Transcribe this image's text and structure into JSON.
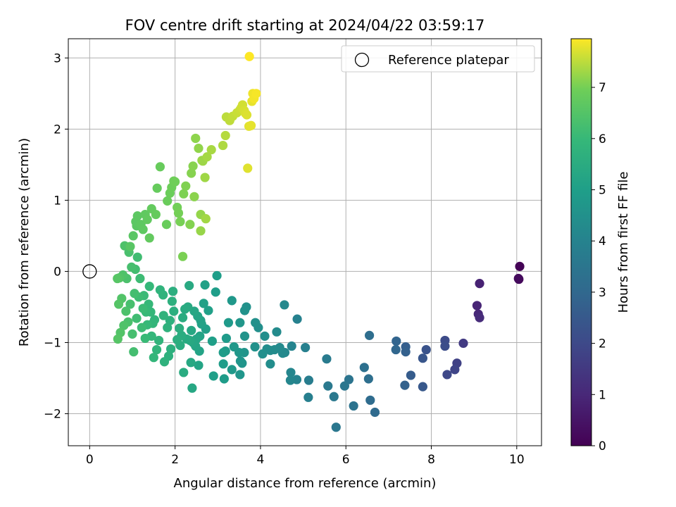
{
  "chart_data": {
    "type": "scatter",
    "title": "FOV centre drift starting at 2024/04/22 03:59:17",
    "xlabel": "Angular distance from reference (arcmin)",
    "ylabel": "Rotation from reference (arcmin)",
    "colorbar_label": "Hours from first FF file",
    "xlim": [
      -0.5,
      10.58
    ],
    "ylim": [
      -2.45,
      3.27
    ],
    "clim": [
      0,
      7.95
    ],
    "xticks": [
      0,
      2,
      4,
      6,
      8,
      10
    ],
    "yticks": [
      -2,
      -1,
      0,
      1,
      2,
      3
    ],
    "cticks": [
      0,
      1,
      2,
      3,
      4,
      5,
      6,
      7
    ],
    "grid": true,
    "colormap": "viridis",
    "legend": {
      "placement": "top-right",
      "label": "Reference platepar"
    },
    "reference_point": {
      "x": 0,
      "y": 0
    },
    "points": [
      [
        10.07,
        0.07,
        0.05
      ],
      [
        10.05,
        -0.11,
        0.15
      ],
      [
        10.04,
        -0.1,
        0.25
      ],
      [
        9.13,
        -0.17,
        0.85
      ],
      [
        9.07,
        -0.48,
        0.95
      ],
      [
        9.1,
        -0.6,
        1.0
      ],
      [
        9.13,
        -0.65,
        1.1
      ],
      [
        8.75,
        -1.01,
        1.55
      ],
      [
        8.6,
        -1.29,
        1.75
      ],
      [
        8.55,
        -1.38,
        1.85
      ],
      [
        8.37,
        -1.45,
        1.95
      ],
      [
        8.32,
        -0.97,
        2.05
      ],
      [
        8.32,
        -1.05,
        2.12
      ],
      [
        7.88,
        -1.1,
        2.3
      ],
      [
        7.8,
        -1.22,
        2.4
      ],
      [
        7.8,
        -1.62,
        2.48
      ],
      [
        7.52,
        -1.46,
        2.6
      ],
      [
        7.4,
        -1.06,
        2.7
      ],
      [
        7.4,
        -1.13,
        2.75
      ],
      [
        7.38,
        -1.6,
        2.8
      ],
      [
        7.18,
        -0.98,
        2.9
      ],
      [
        7.17,
        -1.1,
        2.95
      ],
      [
        6.68,
        -1.98,
        3.1
      ],
      [
        6.57,
        -1.81,
        3.15
      ],
      [
        6.55,
        -0.9,
        3.2
      ],
      [
        6.53,
        -1.51,
        3.25
      ],
      [
        6.43,
        -1.35,
        3.3
      ],
      [
        6.18,
        -1.89,
        3.4
      ],
      [
        6.07,
        -1.52,
        3.45
      ],
      [
        5.97,
        -1.61,
        3.5
      ],
      [
        5.77,
        -2.19,
        3.55
      ],
      [
        5.72,
        -1.76,
        3.6
      ],
      [
        5.58,
        -1.61,
        3.65
      ],
      [
        5.55,
        -1.23,
        3.7
      ],
      [
        5.13,
        -1.53,
        3.8
      ],
      [
        5.12,
        -1.77,
        3.85
      ],
      [
        5.05,
        -1.07,
        3.9
      ],
      [
        4.86,
        -0.67,
        3.95
      ],
      [
        4.85,
        -1.52,
        4.0
      ],
      [
        4.73,
        -1.05,
        4.05
      ],
      [
        4.71,
        -1.42,
        4.1
      ],
      [
        4.7,
        -1.53,
        4.12
      ],
      [
        4.57,
        -1.14,
        4.15
      ],
      [
        4.56,
        -0.47,
        4.2
      ],
      [
        4.52,
        -1.15,
        4.22
      ],
      [
        4.45,
        -1.07,
        4.25
      ],
      [
        4.38,
        -0.85,
        4.28
      ],
      [
        4.33,
        -1.1,
        4.3
      ],
      [
        4.23,
        -1.11,
        4.33
      ],
      [
        4.23,
        -1.3,
        4.35
      ],
      [
        4.15,
        -1.09,
        4.38
      ],
      [
        4.1,
        -0.91,
        4.4
      ],
      [
        4.05,
        -1.16,
        4.42
      ],
      [
        3.95,
        -0.79,
        4.45
      ],
      [
        3.88,
        -0.72,
        4.48
      ],
      [
        3.87,
        -1.06,
        4.5
      ],
      [
        3.67,
        -0.5,
        4.52
      ],
      [
        3.63,
        -0.55,
        4.55
      ],
      [
        3.63,
        -0.91,
        4.57
      ],
      [
        3.62,
        -1.14,
        4.6
      ],
      [
        3.57,
        -1.29,
        4.62
      ],
      [
        3.53,
        -1.26,
        4.65
      ],
      [
        3.52,
        -1.45,
        4.67
      ],
      [
        3.52,
        -0.72,
        4.7
      ],
      [
        3.5,
        -1.14,
        4.72
      ],
      [
        3.38,
        -1.06,
        4.75
      ],
      [
        3.33,
        -0.41,
        4.77
      ],
      [
        3.33,
        -1.38,
        4.8
      ],
      [
        3.25,
        -0.72,
        4.82
      ],
      [
        3.2,
        -0.94,
        4.85
      ],
      [
        3.18,
        -1.12,
        4.87
      ],
      [
        3.15,
        -1.51,
        4.9
      ],
      [
        3.13,
        -1.3,
        4.92
      ],
      [
        3.13,
        -1.14,
        4.94
      ],
      [
        2.98,
        -0.06,
        4.96
      ],
      [
        2.95,
        -0.29,
        4.98
      ],
      [
        2.9,
        -1.47,
        5.0
      ],
      [
        2.87,
        -0.98,
        5.02
      ],
      [
        2.78,
        -0.55,
        5.04
      ],
      [
        2.72,
        -0.81,
        5.06
      ],
      [
        2.7,
        -0.19,
        5.08
      ],
      [
        2.67,
        -0.45,
        5.1
      ],
      [
        2.62,
        -0.74,
        5.12
      ],
      [
        2.6,
        -0.69,
        5.14
      ],
      [
        2.58,
        -0.91,
        5.16
      ],
      [
        2.57,
        -1.12,
        5.18
      ],
      [
        2.55,
        -1.32,
        5.2
      ],
      [
        2.53,
        -0.63,
        5.22
      ],
      [
        2.5,
        -0.95,
        5.24
      ],
      [
        2.48,
        -1.05,
        5.26
      ],
      [
        2.45,
        -0.56,
        5.28
      ],
      [
        2.42,
        -1.0,
        5.3
      ],
      [
        2.4,
        -1.64,
        5.32
      ],
      [
        2.38,
        -0.83,
        5.34
      ],
      [
        2.37,
        -1.28,
        5.36
      ],
      [
        2.35,
        -0.97,
        5.38
      ],
      [
        2.33,
        -0.2,
        5.4
      ],
      [
        2.3,
        -0.5,
        5.42
      ],
      [
        2.27,
        -0.95,
        5.44
      ],
      [
        2.23,
        -0.53,
        5.46
      ],
      [
        2.2,
        -1.42,
        5.48
      ],
      [
        2.18,
        -0.65,
        5.5
      ],
      [
        2.15,
        -0.9,
        5.52
      ],
      [
        2.12,
        -1.04,
        5.54
      ],
      [
        2.1,
        -0.8,
        5.56
      ],
      [
        2.05,
        -0.96,
        5.58
      ],
      [
        1.97,
        -0.56,
        5.6
      ],
      [
        1.95,
        -0.28,
        5.62
      ],
      [
        1.93,
        -0.42,
        5.64
      ],
      [
        1.9,
        -1.09,
        5.66
      ],
      [
        1.88,
        -0.69,
        5.68
      ],
      [
        1.85,
        -1.19,
        5.7
      ],
      [
        1.82,
        -0.79,
        5.72
      ],
      [
        1.75,
        -1.27,
        5.74
      ],
      [
        1.73,
        -0.62,
        5.76
      ],
      [
        1.72,
        -0.33,
        5.78
      ],
      [
        1.65,
        -0.26,
        5.8
      ],
      [
        1.62,
        -0.97,
        5.82
      ],
      [
        1.57,
        -1.1,
        5.84
      ],
      [
        1.52,
        -0.68,
        5.86
      ],
      [
        1.5,
        -1.21,
        5.88
      ],
      [
        1.48,
        -0.73,
        5.9
      ],
      [
        1.45,
        -0.91,
        5.92
      ],
      [
        1.43,
        -0.57,
        5.94
      ],
      [
        1.4,
        -0.21,
        5.96
      ],
      [
        1.38,
        -0.46,
        5.98
      ],
      [
        1.35,
        -0.75,
        6.0
      ],
      [
        1.32,
        -0.57,
        6.02
      ],
      [
        1.3,
        -0.94,
        6.04
      ],
      [
        1.27,
        -0.34,
        6.06
      ],
      [
        1.25,
        -0.52,
        6.08
      ],
      [
        1.22,
        -0.79,
        6.1
      ],
      [
        1.18,
        -0.1,
        6.12
      ],
      [
        1.15,
        -0.36,
        6.14
      ],
      [
        1.12,
        0.2,
        6.16
      ],
      [
        1.1,
        -0.66,
        6.18
      ],
      [
        1.07,
        0.03,
        6.2
      ],
      [
        1.05,
        -0.31,
        6.22
      ],
      [
        1.03,
        -1.13,
        6.24
      ],
      [
        1.0,
        -0.88,
        6.26
      ],
      [
        0.98,
        0.06,
        6.28
      ],
      [
        0.95,
        -0.46,
        6.3
      ],
      [
        0.92,
        0.27,
        6.32
      ],
      [
        0.9,
        -0.71,
        6.34
      ],
      [
        0.87,
        -0.1,
        6.36
      ],
      [
        0.85,
        -0.56,
        6.38
      ],
      [
        0.82,
        0.36,
        6.4
      ],
      [
        0.8,
        -0.76,
        6.42
      ],
      [
        0.78,
        -0.05,
        6.44
      ],
      [
        0.75,
        -0.38,
        6.46
      ],
      [
        0.72,
        -0.86,
        6.48
      ],
      [
        0.7,
        -0.09,
        6.5
      ],
      [
        0.68,
        -0.46,
        6.52
      ],
      [
        0.66,
        -0.95,
        6.54
      ],
      [
        0.65,
        -0.1,
        6.56
      ],
      [
        0.95,
        0.35,
        6.58
      ],
      [
        1.02,
        0.5,
        6.6
      ],
      [
        1.1,
        0.64,
        6.62
      ],
      [
        1.08,
        0.7,
        6.64
      ],
      [
        1.12,
        0.78,
        6.66
      ],
      [
        1.2,
        0.66,
        6.68
      ],
      [
        1.25,
        0.59,
        6.7
      ],
      [
        1.3,
        0.8,
        6.72
      ],
      [
        1.35,
        0.73,
        6.74
      ],
      [
        1.4,
        0.47,
        6.76
      ],
      [
        1.45,
        0.88,
        6.78
      ],
      [
        1.55,
        0.8,
        6.8
      ],
      [
        1.58,
        1.17,
        6.82
      ],
      [
        1.65,
        1.47,
        6.84
      ],
      [
        1.8,
        0.66,
        6.86
      ],
      [
        1.82,
        0.99,
        6.88
      ],
      [
        1.88,
        1.1,
        6.9
      ],
      [
        1.92,
        1.18,
        6.92
      ],
      [
        1.97,
        1.27,
        6.94
      ],
      [
        2.0,
        1.26,
        6.96
      ],
      [
        2.05,
        0.9,
        6.98
      ],
      [
        2.08,
        0.82,
        7.0
      ],
      [
        2.12,
        0.7,
        7.02
      ],
      [
        2.18,
        0.21,
        7.04
      ],
      [
        2.2,
        1.09,
        7.06
      ],
      [
        2.25,
        1.2,
        7.08
      ],
      [
        2.35,
        0.66,
        7.1
      ],
      [
        2.38,
        1.38,
        7.12
      ],
      [
        2.42,
        1.48,
        7.14
      ],
      [
        2.45,
        1.05,
        7.16
      ],
      [
        2.48,
        1.87,
        7.18
      ],
      [
        2.55,
        1.73,
        7.2
      ],
      [
        2.6,
        0.8,
        7.22
      ],
      [
        2.6,
        0.57,
        7.24
      ],
      [
        2.63,
        1.56,
        7.26
      ],
      [
        2.65,
        1.55,
        7.28
      ],
      [
        2.7,
        1.32,
        7.3
      ],
      [
        2.72,
        0.74,
        7.32
      ],
      [
        2.75,
        1.61,
        7.34
      ],
      [
        2.85,
        1.71,
        7.36
      ],
      [
        3.12,
        1.77,
        7.4
      ],
      [
        3.18,
        1.91,
        7.45
      ],
      [
        3.2,
        2.17,
        7.5
      ],
      [
        3.28,
        2.12,
        7.52
      ],
      [
        3.35,
        2.18,
        7.55
      ],
      [
        3.45,
        2.23,
        7.58
      ],
      [
        3.52,
        2.27,
        7.6
      ],
      [
        3.55,
        2.3,
        7.62
      ],
      [
        3.58,
        2.34,
        7.65
      ],
      [
        3.62,
        2.26,
        7.68
      ],
      [
        3.65,
        2.22,
        7.7
      ],
      [
        3.68,
        2.2,
        7.72
      ],
      [
        3.7,
        1.45,
        7.74
      ],
      [
        3.73,
        2.04,
        7.76
      ],
      [
        3.78,
        2.05,
        7.78
      ],
      [
        3.8,
        2.39,
        7.8
      ],
      [
        3.82,
        2.5,
        7.85
      ],
      [
        3.85,
        2.43,
        7.88
      ],
      [
        3.9,
        2.5,
        7.9
      ],
      [
        3.74,
        3.02,
        7.95
      ]
    ]
  }
}
